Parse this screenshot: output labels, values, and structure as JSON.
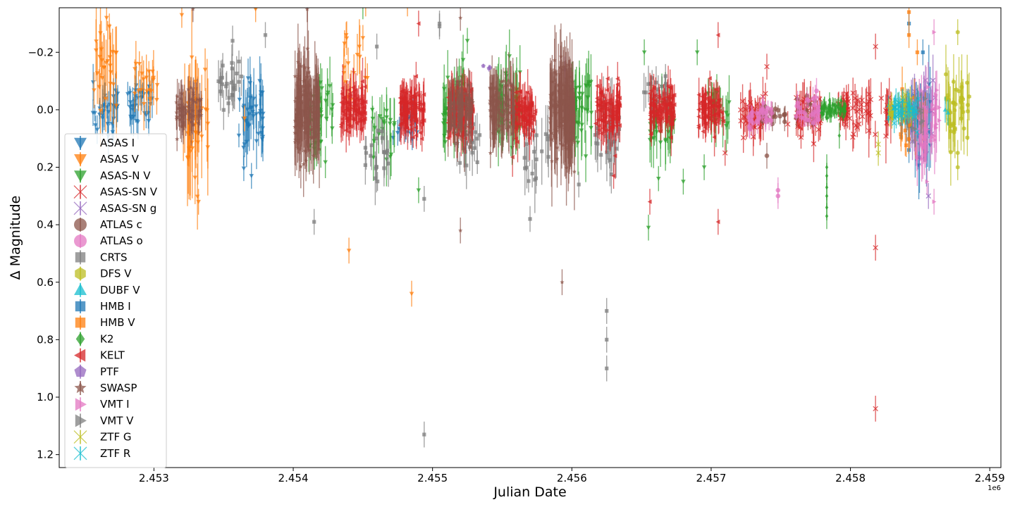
{
  "chart_data": {
    "type": "scatter",
    "title": "",
    "xlabel": "Julian Date",
    "ylabel": "Δ Magnitude",
    "x_offset_label": "1e6",
    "xlim": [
      2452320,
      2459080
    ],
    "ylim": [
      1.245,
      -0.355
    ],
    "y_inverted": true,
    "grid": false,
    "legend_position": "lower-left",
    "x_ticks": [
      {
        "value": 2453000,
        "label": "2.453"
      },
      {
        "value": 2454000,
        "label": "2.454"
      },
      {
        "value": 2455000,
        "label": "2.455"
      },
      {
        "value": 2456000,
        "label": "2.456"
      },
      {
        "value": 2457000,
        "label": "2.457"
      },
      {
        "value": 2458000,
        "label": "2.458"
      },
      {
        "value": 2459000,
        "label": "2.459"
      }
    ],
    "y_ticks": [
      {
        "value": -0.4,
        "label": "−0.4"
      },
      {
        "value": -0.2,
        "label": "−0.2"
      },
      {
        "value": 0.0,
        "label": "0.0"
      },
      {
        "value": 0.2,
        "label": "0.2"
      },
      {
        "value": 0.4,
        "label": "0.4"
      },
      {
        "value": 0.6,
        "label": "0.6"
      },
      {
        "value": 0.8,
        "label": "0.8"
      },
      {
        "value": 1.0,
        "label": "1.0"
      },
      {
        "value": 1.2,
        "label": "1.2"
      }
    ],
    "series": [
      {
        "name": "ASAS I",
        "color": "#1f77b4",
        "marker": "triangle-down",
        "clusters": [
          [
            2452650,
            0.02,
            0.07,
            30
          ],
          [
            2452900,
            -0.01,
            0.06,
            30
          ],
          [
            2453700,
            0.03,
            0.1,
            40
          ],
          [
            2454800,
            0.03,
            0.05,
            25
          ],
          [
            2458500,
            0.05,
            0.12,
            20
          ]
        ],
        "points": [
          [
            2453700,
            0.23
          ],
          [
            2452650,
            -0.05
          ],
          [
            2452900,
            -0.06
          ],
          [
            2453650,
            0.12
          ],
          [
            2454750,
            0.08
          ]
        ]
      },
      {
        "name": "ASAS V",
        "color": "#ff7f0e",
        "marker": "triangle-down",
        "clusters": [
          [
            2452650,
            -0.12,
            0.12,
            25
          ],
          [
            2452950,
            -0.1,
            0.08,
            20
          ],
          [
            2453300,
            0.05,
            0.15,
            40
          ],
          [
            2454450,
            -0.15,
            0.1,
            15
          ]
        ],
        "points": [
          [
            2452680,
            -0.29
          ],
          [
            2453200,
            -0.33
          ],
          [
            2453730,
            -0.35
          ],
          [
            2454400,
            0.49
          ],
          [
            2454850,
            0.64
          ],
          [
            2454520,
            -0.37
          ],
          [
            2454820,
            -0.37
          ],
          [
            2453650,
            0.03
          ],
          [
            2453320,
            0.32
          ],
          [
            2452660,
            -0.32
          ],
          [
            2454380,
            -0.26
          ],
          [
            2454500,
            -0.25
          ]
        ]
      },
      {
        "name": "ASAS-N V",
        "color": "#2ca02c",
        "marker": "triangle-down",
        "clusters": [
          [
            2454200,
            0.05,
            0.09,
            35
          ],
          [
            2454650,
            0.05,
            0.08,
            20
          ],
          [
            2455150,
            0.0,
            0.1,
            40
          ],
          [
            2455550,
            0.0,
            0.1,
            40
          ],
          [
            2456050,
            0.0,
            0.1,
            40
          ],
          [
            2456650,
            0.03,
            0.1,
            35
          ],
          [
            2457050,
            0.0,
            0.08,
            20
          ]
        ],
        "points": [
          [
            2454500,
            -0.36
          ],
          [
            2456550,
            0.41
          ],
          [
            2456800,
            0.25
          ],
          [
            2456950,
            0.2
          ],
          [
            2454900,
            0.28
          ],
          [
            2456520,
            -0.2
          ],
          [
            2455250,
            -0.24
          ],
          [
            2456900,
            -0.2
          ]
        ]
      },
      {
        "name": "ASAS-SN V",
        "color": "#d62728",
        "marker": "x",
        "clusters": [
          [
            2457300,
            0.02,
            0.06,
            40
          ],
          [
            2457700,
            0.02,
            0.06,
            40
          ],
          [
            2458000,
            0.0,
            0.05,
            40
          ],
          [
            2458200,
            0.02,
            0.08,
            20
          ]
        ],
        "points": [
          [
            2458180,
            -0.22
          ],
          [
            2458180,
            0.48
          ],
          [
            2458180,
            1.04
          ],
          [
            2457400,
            -0.15
          ],
          [
            2457100,
            0.15
          ],
          [
            2457550,
            0.05
          ]
        ]
      },
      {
        "name": "ASAS-SN g",
        "color": "#9467bd",
        "marker": "x",
        "clusters": [
          [
            2458520,
            0.02,
            0.08,
            30
          ]
        ],
        "points": [
          [
            2458560,
            0.3
          ]
        ]
      },
      {
        "name": "ATLAS c",
        "color": "#8c564b",
        "marker": "circle",
        "clusters": [
          [
            2457450,
            0.02,
            0.03,
            25
          ],
          [
            2457700,
            0.0,
            0.03,
            15
          ]
        ],
        "points": [
          [
            2457400,
            0.16
          ]
        ]
      },
      {
        "name": "ATLAS o",
        "color": "#e377c2",
        "marker": "circle",
        "clusters": [
          [
            2457350,
            0.02,
            0.04,
            30
          ],
          [
            2457700,
            0.0,
            0.04,
            30
          ]
        ],
        "points": [
          [
            2457480,
            0.28
          ],
          [
            2457480,
            0.3
          ]
        ]
      },
      {
        "name": "CRTS",
        "color": "#7f7f7f",
        "marker": "square",
        "clusters": [
          [
            2453550,
            -0.1,
            0.08,
            25
          ],
          [
            2454600,
            0.15,
            0.08,
            20
          ],
          [
            2455250,
            0.12,
            0.08,
            20
          ],
          [
            2455750,
            0.15,
            0.1,
            20
          ],
          [
            2456250,
            0.1,
            0.1,
            30
          ],
          [
            2456600,
            -0.05,
            0.06,
            20
          ]
        ],
        "points": [
          [
            2454940,
            1.13
          ],
          [
            2456250,
            0.7
          ],
          [
            2456250,
            0.8
          ],
          [
            2456250,
            0.9
          ],
          [
            2454150,
            0.39
          ],
          [
            2454940,
            0.31
          ],
          [
            2455700,
            0.38
          ],
          [
            2456050,
            0.26
          ],
          [
            2455050,
            -0.29
          ],
          [
            2455050,
            -0.3
          ],
          [
            2454600,
            -0.22
          ],
          [
            2453800,
            -0.26
          ]
        ]
      },
      {
        "name": "DFS V",
        "color": "#bcbd22",
        "marker": "hexagon",
        "clusters": [
          [
            2458770,
            0.0,
            0.1,
            40
          ]
        ],
        "points": [
          [
            2458770,
            -0.27
          ],
          [
            2458770,
            0.15
          ],
          [
            2458770,
            0.2
          ]
        ]
      },
      {
        "name": "DUBF V",
        "color": "#17becf",
        "marker": "triangle-up",
        "clusters": [
          [
            2458350,
            0.0,
            0.03,
            20
          ]
        ],
        "points": [
          [
            2458680,
            0.0
          ],
          [
            2458700,
            0.01
          ]
        ]
      },
      {
        "name": "HMB I",
        "color": "#1f77b4",
        "marker": "square",
        "clusters": [
          [
            2458450,
            0.02,
            0.07,
            20
          ]
        ],
        "points": [
          [
            2458420,
            -0.3
          ],
          [
            2458420,
            0.14
          ],
          [
            2458520,
            -0.2
          ]
        ]
      },
      {
        "name": "HMB V",
        "color": "#ff7f0e",
        "marker": "square",
        "clusters": [
          [
            2458450,
            0.05,
            0.08,
            20
          ]
        ],
        "points": [
          [
            2458420,
            -0.34
          ],
          [
            2458420,
            -0.26
          ],
          [
            2458480,
            -0.2
          ]
        ]
      },
      {
        "name": "K2",
        "color": "#2ca02c",
        "marker": "diamond",
        "clusters": [
          [
            2457880,
            0.0,
            0.025,
            60
          ]
        ],
        "points": [
          [
            2457830,
            0.2
          ],
          [
            2457830,
            0.27
          ],
          [
            2457830,
            0.34
          ],
          [
            2457830,
            0.37
          ],
          [
            2457830,
            0.3
          ],
          [
            2457830,
            0.23
          ],
          [
            2457920,
            0.09
          ]
        ]
      },
      {
        "name": "KELT",
        "color": "#d62728",
        "marker": "triangle-left",
        "clusters": [
          [
            2454430,
            0.0,
            0.07,
            80
          ],
          [
            2454850,
            0.0,
            0.07,
            90
          ],
          [
            2455200,
            0.0,
            0.07,
            90
          ],
          [
            2455650,
            0.0,
            0.07,
            70
          ],
          [
            2456260,
            0.0,
            0.07,
            80
          ],
          [
            2456650,
            0.0,
            0.06,
            80
          ],
          [
            2457000,
            0.0,
            0.06,
            70
          ]
        ],
        "points": [
          [
            2456560,
            0.32
          ],
          [
            2457050,
            0.39
          ],
          [
            2457050,
            -0.26
          ],
          [
            2454900,
            -0.3
          ],
          [
            2456300,
            0.23
          ]
        ]
      },
      {
        "name": "PTF",
        "color": "#9467bd",
        "marker": "pentagon",
        "clusters": [
          [
            2455400,
            -0.14,
            0.01,
            3
          ]
        ],
        "points": [
          [
            2455950,
            -0.14
          ]
        ]
      },
      {
        "name": "SWASP",
        "color": "#8c564b",
        "marker": "star",
        "clusters": [
          [
            2453250,
            0.0,
            0.07,
            60
          ],
          [
            2454100,
            0.0,
            0.12,
            150
          ],
          [
            2455200,
            0.0,
            0.08,
            70
          ],
          [
            2455500,
            0.0,
            0.09,
            90
          ],
          [
            2455930,
            0.0,
            0.14,
            150
          ]
        ],
        "points": [
          [
            2455200,
            0.42
          ],
          [
            2455200,
            -0.32
          ],
          [
            2455930,
            0.6
          ],
          [
            2454100,
            -0.35
          ],
          [
            2453280,
            -0.35
          ]
        ]
      },
      {
        "name": "VMT I",
        "color": "#e377c2",
        "marker": "triangle-right",
        "clusters": [
          [
            2458550,
            0.05,
            0.1,
            50
          ]
        ],
        "points": [
          [
            2458600,
            -0.27
          ],
          [
            2458600,
            0.32
          ],
          [
            2458550,
            0.25
          ]
        ]
      },
      {
        "name": "VMT V",
        "color": "#7f7f7f",
        "marker": "triangle-right",
        "clusters": [
          [
            2458450,
            0.02,
            0.06,
            20
          ]
        ],
        "points": []
      },
      {
        "name": "ZTF G",
        "color": "#bcbd22",
        "marker": "x",
        "clusters": [
          [
            2458350,
            0.0,
            0.04,
            25
          ]
        ],
        "points": [
          [
            2458200,
            0.12
          ],
          [
            2458200,
            0.15
          ]
        ]
      },
      {
        "name": "ZTF R",
        "color": "#17becf",
        "marker": "x",
        "clusters": [
          [
            2458400,
            0.0,
            0.04,
            30
          ]
        ],
        "points": []
      }
    ]
  }
}
